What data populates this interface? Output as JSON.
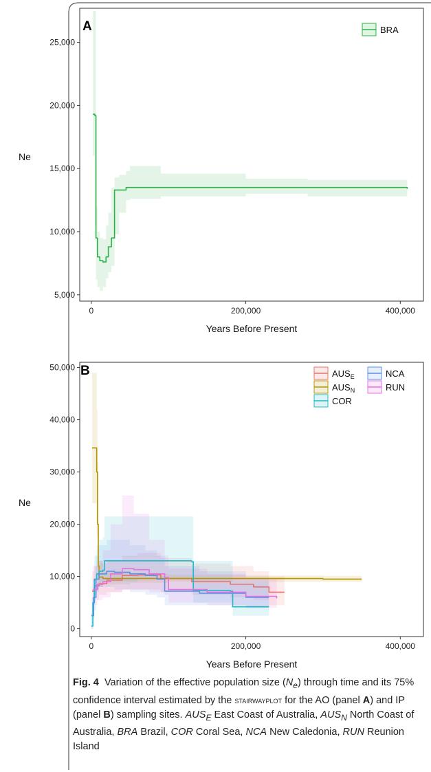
{
  "caption": {
    "fig": "Fig. 4",
    "t1": "Variation of the effective population size (",
    "ne": "N",
    "ne_sub": "e",
    "t2": ") through time and its 75% confidence interval estimated by the ",
    "method": "stairwayplot",
    "t3": " for the AO (panel ",
    "panel_a": "A",
    "t4": ") and IP (panel ",
    "panel_b": "B",
    "t5": ") sampling sites. ",
    "aus": "AUS",
    "e_sub": "E",
    "t6": " East Coast of Australia, ",
    "n_sub": "N",
    "t7": " North Coast of Australia, ",
    "bra": "BRA",
    "t8": " Brazil, ",
    "cor": "COR",
    "t9": " Coral Sea, ",
    "nca": "NCA",
    "t10": " New Caledonia, ",
    "run": "RUN",
    "t11": " Reunion Island"
  },
  "chart_data": [
    {
      "type": "line",
      "panel_label": "A",
      "xlabel": "Years Before Present",
      "ylabel": "Ne",
      "xlim": [
        -15000,
        430000
      ],
      "ylim": [
        4500,
        27700
      ],
      "xticks": [
        0,
        200000,
        400000
      ],
      "xtick_labels": [
        "0",
        "200,000",
        "400,000"
      ],
      "yticks": [
        5000,
        10000,
        15000,
        20000,
        25000
      ],
      "ytick_labels": [
        "5,000",
        "10,000",
        "15,000",
        "20,000",
        "25,000"
      ],
      "grid": false,
      "legend_position": "top-right",
      "series": [
        {
          "name": "BRA",
          "color": "#2db34a",
          "x": [
            2000,
            4500,
            6000,
            8000,
            11000,
            15000,
            19000,
            22000,
            26000,
            30000,
            36000,
            45000,
            50000,
            90000,
            200000,
            280000,
            409000
          ],
          "y": [
            19300,
            19200,
            9500,
            8000,
            7700,
            7600,
            8000,
            8800,
            9500,
            13300,
            13300,
            13500,
            13500,
            13500,
            13500,
            13500,
            13400
          ],
          "band": {
            "x": [
              2000,
              4500,
              6000,
              8000,
              11000,
              15000,
              19000,
              22000,
              26000,
              30000,
              36000,
              45000,
              50000,
              90000,
              200000,
              280000,
              409000
            ],
            "lower": [
              16000,
              10500,
              6200,
              5600,
              5300,
              5600,
              6300,
              6800,
              7300,
              9800,
              11500,
              12500,
              12600,
              12800,
              13000,
              12800,
              12800
            ],
            "upper": [
              27500,
              27500,
              12000,
              10000,
              9500,
              9400,
              10500,
              11500,
              13500,
              14300,
              14500,
              14800,
              15200,
              14600,
              14200,
              14100,
              14000
            ]
          }
        }
      ]
    },
    {
      "type": "line",
      "panel_label": "B",
      "xlabel": "Years Before Present",
      "ylabel": "Ne",
      "xlim": [
        -15000,
        430000
      ],
      "ylim": [
        -1500,
        51000
      ],
      "xticks": [
        0,
        200000,
        400000
      ],
      "xtick_labels": [
        "0",
        "200,000",
        "400,000"
      ],
      "yticks": [
        0,
        10000,
        20000,
        30000,
        40000,
        50000
      ],
      "ytick_labels": [
        "0",
        "10,000",
        "20,000",
        "30,000",
        "40,000",
        "50,000"
      ],
      "grid": false,
      "legend_position": "top-right",
      "series": [
        {
          "name": "AUS",
          "name_sub": "E",
          "color": "#e8736c",
          "x": [
            1000,
            4000,
            10000,
            20000,
            40000,
            60000,
            90000,
            130000,
            180000,
            210000,
            230000,
            250000
          ],
          "y": [
            7200,
            8200,
            8600,
            9300,
            10200,
            10300,
            9600,
            9000,
            8500,
            8000,
            7000,
            7000
          ],
          "band": {
            "x": [
              1000,
              4000,
              10000,
              20000,
              40000,
              60000,
              90000,
              130000,
              180000,
              210000,
              230000,
              250000
            ],
            "lower": [
              4500,
              5500,
              6500,
              7000,
              7500,
              7500,
              7000,
              6500,
              6000,
              5500,
              4500,
              4500
            ],
            "upper": [
              11000,
              12000,
              12500,
              13000,
              14000,
              14500,
              13500,
              12500,
              12000,
              11000,
              10000,
              9500
            ]
          }
        },
        {
          "name": "AUS",
          "name_sub": "N",
          "color": "#b79500",
          "x": [
            1000,
            5000,
            7000,
            8000,
            9000,
            10000,
            15000,
            50000,
            100000,
            200000,
            300000,
            350000
          ],
          "y": [
            34600,
            34600,
            30000,
            20000,
            12000,
            9900,
            9600,
            9600,
            9600,
            9600,
            9500,
            9500
          ],
          "band": {
            "x": [
              1000,
              5000,
              7000,
              8000,
              9000,
              10000,
              15000,
              50000,
              100000,
              200000,
              300000,
              350000
            ],
            "lower": [
              24000,
              24000,
              18000,
              12000,
              8500,
              8000,
              8500,
              8800,
              9000,
              9000,
              9000,
              9000
            ],
            "upper": [
              49000,
              49000,
              42000,
              32000,
              20000,
              13000,
              11000,
              10500,
              10300,
              10200,
              10100,
              10000
            ]
          }
        },
        {
          "name": "COR",
          "color": "#1fb8c9",
          "x": [
            0,
            2000,
            4000,
            7000,
            10000,
            15000,
            17000,
            60000,
            130000,
            132000,
            180000,
            183000,
            230000
          ],
          "y": [
            500,
            5000,
            9500,
            10500,
            11000,
            11200,
            13000,
            13000,
            12800,
            7300,
            7200,
            4200,
            4200
          ],
          "band": {
            "x": [
              0,
              2000,
              4000,
              7000,
              10000,
              15000,
              17000,
              60000,
              130000,
              132000,
              180000,
              183000,
              230000
            ],
            "lower": [
              0,
              2000,
              6000,
              7500,
              8000,
              8500,
              9000,
              9500,
              9000,
              5000,
              5000,
              2500,
              2500
            ],
            "upper": [
              3000,
              8000,
              14000,
              16000,
              17000,
              17500,
              21500,
              21500,
              21500,
              13000,
              13000,
              9000,
              9000
            ]
          }
        },
        {
          "name": "NCA",
          "color": "#5b8fe8",
          "x": [
            0,
            3000,
            6000,
            10000,
            20000,
            30000,
            50000,
            70000,
            85000,
            95000,
            140000,
            200000,
            230000
          ],
          "y": [
            2500,
            6000,
            9500,
            10500,
            11000,
            10800,
            10500,
            10200,
            9500,
            7200,
            6800,
            6000,
            6000
          ],
          "band": {
            "x": [
              0,
              3000,
              6000,
              10000,
              20000,
              30000,
              50000,
              70000,
              85000,
              95000,
              140000,
              200000,
              230000
            ],
            "lower": [
              0,
              3500,
              7000,
              8000,
              8000,
              7500,
              7000,
              6500,
              6000,
              4500,
              4500,
              4000,
              4000
            ],
            "upper": [
              6000,
              9500,
              14000,
              16000,
              17000,
              17000,
              16000,
              15000,
              14000,
              12000,
              11000,
              10000,
              10000
            ]
          }
        },
        {
          "name": "RUN",
          "color": "#e86fe0",
          "x": [
            2000,
            8000,
            15000,
            25000,
            40000,
            55000,
            75000,
            95000,
            100000,
            150000,
            200000,
            240000
          ],
          "y": [
            7500,
            8500,
            9000,
            10500,
            11500,
            11300,
            10500,
            9800,
            7500,
            7000,
            6200,
            5800
          ],
          "band": {
            "x": [
              2000,
              8000,
              15000,
              25000,
              40000,
              55000,
              75000,
              95000,
              100000,
              150000,
              200000,
              240000
            ],
            "lower": [
              4500,
              5500,
              6000,
              7000,
              7500,
              7500,
              7000,
              6500,
              5000,
              4500,
              4000,
              3800
            ],
            "upper": [
              12000,
              13000,
              15000,
              20000,
              25500,
              22000,
              17000,
              14000,
              11500,
              10500,
              9500,
              9000
            ]
          }
        }
      ]
    }
  ]
}
